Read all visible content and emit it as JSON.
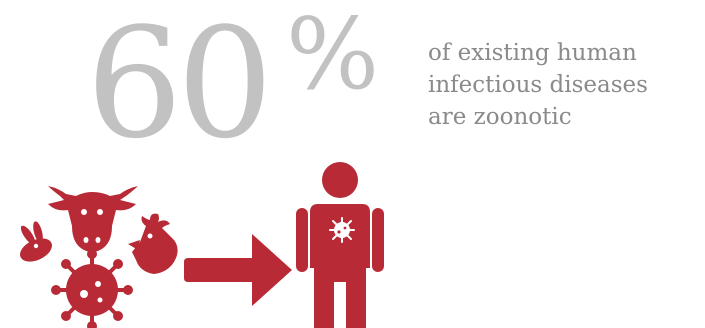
{
  "headline": {
    "number": "60",
    "percent_sign": "%",
    "lines": [
      "of existing human",
      "infectious diseases",
      "are zoonotic"
    ]
  },
  "illustration": {
    "icons": [
      "rabbit-icon",
      "cow-icon",
      "chicken-icon",
      "virus-icon",
      "arrow-right-icon",
      "person-icon",
      "virus-icon"
    ]
  },
  "colors": {
    "number": "#c2c2c2",
    "text": "#8a8a8a",
    "accent": "#b72a36",
    "background": "#ffffff"
  }
}
